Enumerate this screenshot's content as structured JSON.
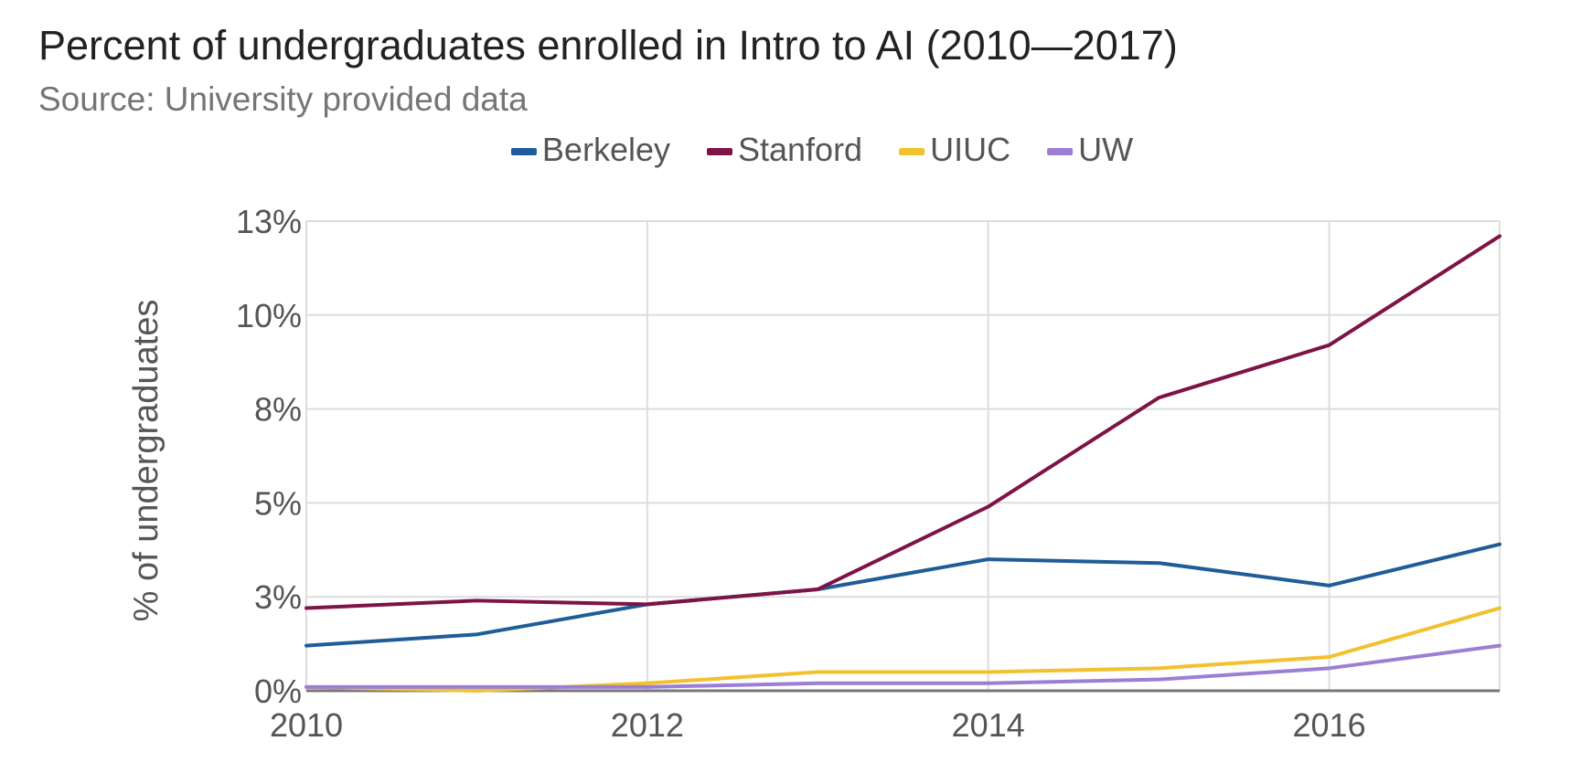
{
  "title": "Percent of undergraduates enrolled in Intro to AI (2010—2017)",
  "subtitle": "Source: University provided data",
  "chart_data": {
    "type": "line",
    "title": "Percent of undergraduates enrolled in Intro to AI (2010—2017)",
    "subtitle": "Source: University provided data",
    "xlabel": "",
    "ylabel": "% of undergraduates",
    "x": [
      2010,
      2011,
      2012,
      2013,
      2014,
      2015,
      2016,
      2017
    ],
    "xlim": [
      2010,
      2017
    ],
    "ylim": [
      0,
      12.5
    ],
    "y_ticks": [
      0,
      2.5,
      5,
      7.5,
      10,
      12.5
    ],
    "y_tick_labels": [
      "0%",
      "3%",
      "5%",
      "8%",
      "10%",
      "13%"
    ],
    "x_ticks": [
      2010,
      2012,
      2014,
      2016
    ],
    "x_tick_labels": [
      "2010",
      "2012",
      "2014",
      "2016"
    ],
    "grid": true,
    "legend_position": "top-center",
    "series": [
      {
        "name": "Berkeley",
        "color": "#1f5c99",
        "values": [
          1.2,
          1.5,
          2.3,
          2.7,
          3.5,
          3.4,
          2.8,
          3.9
        ]
      },
      {
        "name": "Stanford",
        "color": "#7e1346",
        "values": [
          2.2,
          2.4,
          2.3,
          2.7,
          4.9,
          7.8,
          9.2,
          12.1
        ]
      },
      {
        "name": "UIUC",
        "color": "#f2c12e",
        "values": [
          0.1,
          0.0,
          0.2,
          0.5,
          0.5,
          0.6,
          0.9,
          2.2
        ]
      },
      {
        "name": "UW",
        "color": "#9b7fd4",
        "values": [
          0.1,
          0.1,
          0.1,
          0.2,
          0.2,
          0.3,
          0.6,
          1.2
        ]
      }
    ]
  }
}
